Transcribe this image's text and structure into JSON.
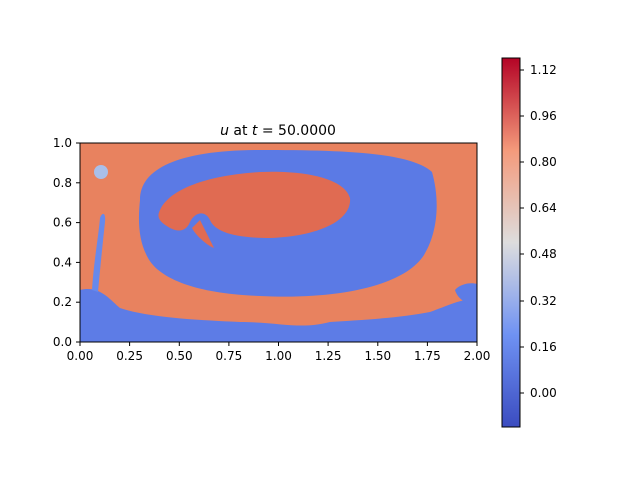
{
  "chart_data": {
    "type": "heatmap",
    "title_var": "u",
    "title_mid": " at ",
    "title_t": "t",
    "title_eq": " = 50.0000",
    "xlabel": "",
    "ylabel": "",
    "xlim": [
      0.0,
      2.0
    ],
    "ylim": [
      0.0,
      1.0
    ],
    "x_ticks": [
      "0.00",
      "0.25",
      "0.50",
      "0.75",
      "1.00",
      "1.25",
      "1.50",
      "1.75",
      "2.00"
    ],
    "y_ticks": [
      "0.0",
      "0.2",
      "0.4",
      "0.6",
      "0.8",
      "1.0"
    ],
    "colorbar": {
      "colormap": "coolwarm",
      "range": [
        -0.12,
        1.16
      ],
      "ticks": [
        "0.00",
        "0.16",
        "0.32",
        "0.48",
        "0.64",
        "0.80",
        "0.96",
        "1.12"
      ],
      "low_color": "#3b4cc0",
      "mid_color": "#dddddd",
      "high_color": "#b40426"
    },
    "field_features": [
      {
        "name": "background",
        "value": 0.92
      },
      {
        "name": "outer swirl ring",
        "value": 0.05
      },
      {
        "name": "central blob",
        "value": 0.98
      },
      {
        "name": "bottom band",
        "value": 0.03
      },
      {
        "name": "left filament",
        "value": 0.05
      }
    ],
    "grid": false
  }
}
